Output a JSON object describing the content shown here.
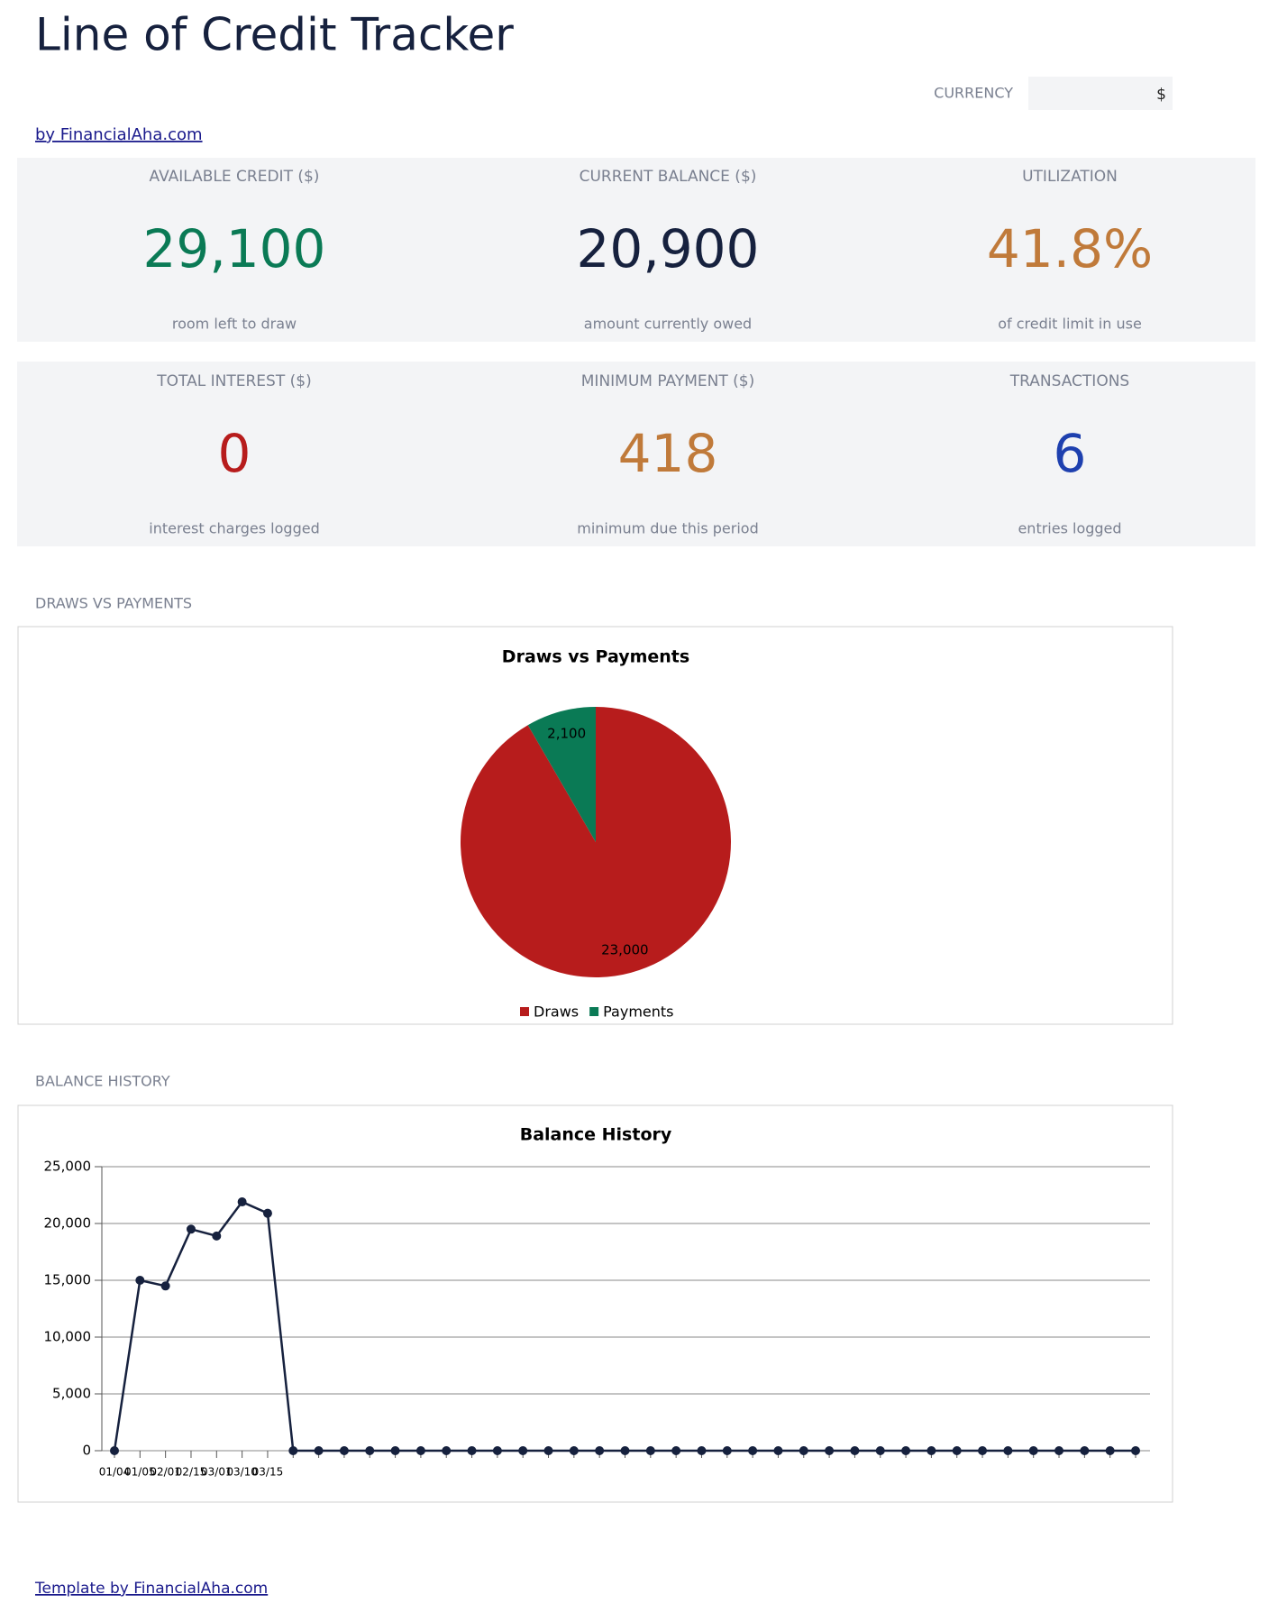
{
  "header": {
    "title": "Line of Credit Tracker",
    "currency_label": "CURRENCY",
    "currency_value": "$",
    "link": "by FinancialAha.com"
  },
  "kpis": [
    {
      "label": "AVAILABLE CREDIT ($)",
      "value": "29,100",
      "note": "room left to draw",
      "color": "#0a7a55"
    },
    {
      "label": "CURRENT BALANCE ($)",
      "value": "20,900",
      "note": "amount currently owed",
      "color": "#16213e"
    },
    {
      "label": "UTILIZATION",
      "value": "41.8%",
      "note": "of credit limit in use",
      "color": "#c07a3a"
    },
    {
      "label": "TOTAL INTEREST ($)",
      "value": "0",
      "note": "interest charges logged",
      "color": "#b71c1c"
    },
    {
      "label": "MINIMUM PAYMENT ($)",
      "value": "418",
      "note": "minimum due this period",
      "color": "#c07a3a"
    },
    {
      "label": "TRANSACTIONS",
      "value": "6",
      "note": "entries logged",
      "color": "#1e40af"
    }
  ],
  "sections": [
    "DRAWS VS PAYMENTS",
    "BALANCE HISTORY"
  ],
  "chart_data": [
    {
      "type": "pie",
      "title": "Draws vs Payments",
      "categories": [
        "Draws",
        "Payments"
      ],
      "values": [
        23000,
        2100
      ],
      "value_labels": [
        "23,000",
        "2,100"
      ],
      "colors": [
        "#b71c1c",
        "#0a7a55"
      ],
      "legend": "bottom"
    },
    {
      "type": "line",
      "title": "Balance History",
      "categories": [
        "01/04",
        "01/05",
        "02/01",
        "02/15",
        "03/01",
        "03/10",
        "03/15",
        null,
        null,
        null,
        null,
        null,
        null,
        null,
        null,
        null,
        null,
        null,
        null,
        null,
        null,
        null,
        null,
        null,
        null,
        null,
        null,
        null,
        null,
        null,
        null,
        null,
        null,
        null,
        null,
        null,
        null,
        null,
        null,
        null,
        null
      ],
      "values": [
        0,
        15000,
        14500,
        19500,
        18900,
        21900,
        20900,
        0,
        0,
        0,
        0,
        0,
        0,
        0,
        0,
        0,
        0,
        0,
        0,
        0,
        0,
        0,
        0,
        0,
        0,
        0,
        0,
        0,
        0,
        0,
        0,
        0,
        0,
        0,
        0,
        0,
        0,
        0,
        0,
        0,
        0
      ],
      "color": "#16213e",
      "ylim": [
        0,
        25000
      ],
      "yticks": [
        0,
        {
          "value": 5000,
          "label": "5,000"
        },
        {
          "value": 10000,
          "label": "10,000"
        },
        {
          "value": 15000,
          "label": "15,000"
        },
        {
          "value": 20000,
          "label": "20,000"
        },
        {
          "value": 25000,
          "label": "25,000"
        }
      ],
      "grid": true
    }
  ],
  "footer": "Template by FinancialAha.com"
}
